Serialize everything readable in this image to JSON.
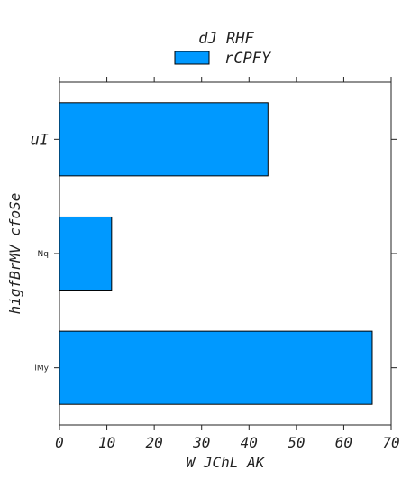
{
  "chart_data": {
    "type": "bar",
    "orientation": "horizontal",
    "title": "dJ RHF",
    "xlabel": "W JChL AK",
    "ylabel": "higfBrMV cfoSe",
    "categories": [
      "uI",
      "Nq",
      "lMy"
    ],
    "series": [
      {
        "name": "rCPFY",
        "values": [
          44,
          11,
          66
        ],
        "color": "#0099ff"
      }
    ],
    "xlim": [
      0,
      70
    ],
    "xticks": [
      0,
      10,
      20,
      30,
      40,
      50,
      60,
      70
    ],
    "xtick_labels": [
      "0",
      "10",
      "20",
      "30",
      "40",
      "50",
      "60",
      "70"
    ],
    "grid": false,
    "legend_position": "top-center"
  }
}
